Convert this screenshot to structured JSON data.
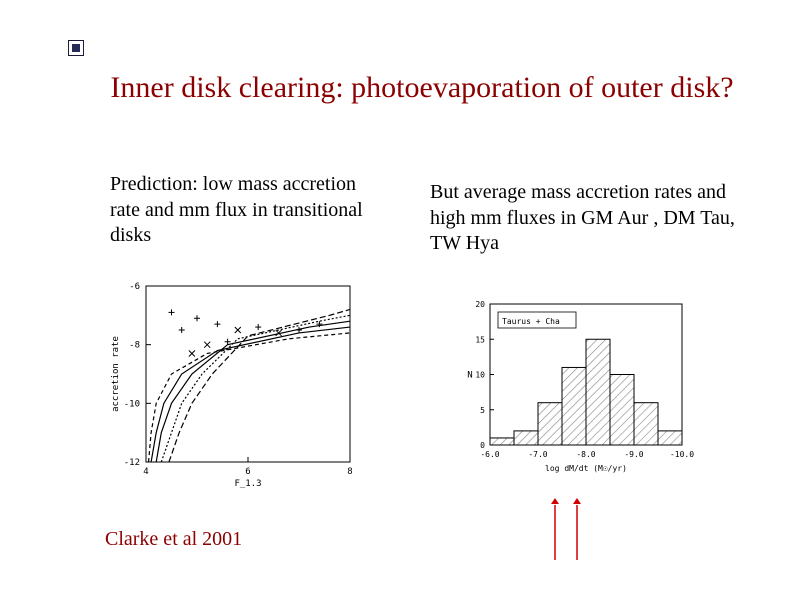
{
  "accent_colors": {
    "title": "#8b0000",
    "citation": "#8b0000",
    "arrows": "#d00000",
    "bullet_border": "#1a1a3a",
    "bullet_fill": "#2a2a5a"
  },
  "typography": {
    "title_fontsize": 30,
    "body_fontsize": 20,
    "family": "Times New Roman"
  },
  "title": "Inner disk clearing: photoevaporation of outer disk?",
  "left_text": "Prediction: low mass accretion rate and mm flux in transitional disks",
  "right_text": "But average mass accretion rates and high mm fluxes in GM Aur ,  DM Tau, TW Hya",
  "citation": "Clarke et al 2001",
  "left_plot": {
    "type": "line",
    "xlabel": "F_1.3",
    "ylabel": "accretion rate",
    "xlim": [
      4,
      8
    ],
    "ylim": [
      -12,
      -6
    ],
    "xtick_step": 2,
    "ytick_step": 2,
    "axes_color": "#000000",
    "line_width": 1.2,
    "background_color": "#ffffff",
    "curves": [
      {
        "pts": [
          [
            4.05,
            -12
          ],
          [
            4.1,
            -11
          ],
          [
            4.2,
            -10
          ],
          [
            4.5,
            -9
          ],
          [
            5.2,
            -8.3
          ],
          [
            6.8,
            -7.8
          ],
          [
            8,
            -7.6
          ]
        ],
        "dash": "4,3"
      },
      {
        "pts": [
          [
            4.1,
            -12
          ],
          [
            4.2,
            -11
          ],
          [
            4.35,
            -10
          ],
          [
            4.7,
            -9
          ],
          [
            5.4,
            -8.2
          ],
          [
            7.0,
            -7.6
          ],
          [
            8,
            -7.4
          ]
        ],
        "dash": ""
      },
      {
        "pts": [
          [
            4.2,
            -12
          ],
          [
            4.3,
            -11
          ],
          [
            4.5,
            -10
          ],
          [
            4.9,
            -9
          ],
          [
            5.6,
            -8.0
          ],
          [
            7.2,
            -7.4
          ],
          [
            8,
            -7.2
          ]
        ],
        "dash": ""
      },
      {
        "pts": [
          [
            4.3,
            -12
          ],
          [
            4.5,
            -11
          ],
          [
            4.7,
            -10
          ],
          [
            5.1,
            -9
          ],
          [
            5.8,
            -7.8
          ],
          [
            7.4,
            -7.2
          ],
          [
            8,
            -7.0
          ]
        ],
        "dash": "2,2"
      },
      {
        "pts": [
          [
            4.45,
            -12
          ],
          [
            4.65,
            -11
          ],
          [
            4.9,
            -10
          ],
          [
            5.3,
            -9
          ],
          [
            6.0,
            -7.7
          ],
          [
            7.6,
            -7.0
          ],
          [
            8,
            -6.8
          ]
        ],
        "dash": "6,3"
      }
    ],
    "markers": [
      {
        "x": 4.5,
        "y": -6.9,
        "t": "+"
      },
      {
        "x": 5.0,
        "y": -7.1,
        "t": "+"
      },
      {
        "x": 5.4,
        "y": -7.3,
        "t": "+"
      },
      {
        "x": 5.8,
        "y": -7.5,
        "t": "x"
      },
      {
        "x": 6.2,
        "y": -7.4,
        "t": "+"
      },
      {
        "x": 6.6,
        "y": -7.6,
        "t": "x"
      },
      {
        "x": 7.0,
        "y": -7.5,
        "t": "+"
      },
      {
        "x": 7.4,
        "y": -7.3,
        "t": "+"
      },
      {
        "x": 5.2,
        "y": -8.0,
        "t": "x"
      },
      {
        "x": 4.9,
        "y": -8.3,
        "t": "x"
      },
      {
        "x": 5.6,
        "y": -7.9,
        "t": "+"
      },
      {
        "x": 4.7,
        "y": -7.5,
        "t": "+"
      }
    ]
  },
  "right_plot": {
    "type": "histogram",
    "legend": "Taurus + Cha",
    "xlabel": "log dM/dt (M☉/yr)",
    "ylabel": "N",
    "xlim": [
      -6.0,
      -10.0
    ],
    "ylim": [
      0,
      20
    ],
    "ytick_step": 5,
    "xtick_labels": [
      "-6.0",
      "-7.0",
      "-8.0",
      "-9.0",
      "-10.0"
    ],
    "bin_width": 0.5,
    "axes_color": "#000000",
    "hatch_color": "#888888",
    "background_color": "#ffffff",
    "bars": [
      {
        "x": -6.25,
        "n": 1
      },
      {
        "x": -6.75,
        "n": 2
      },
      {
        "x": -7.25,
        "n": 6
      },
      {
        "x": -7.75,
        "n": 11
      },
      {
        "x": -8.25,
        "n": 15
      },
      {
        "x": -8.75,
        "n": 10
      },
      {
        "x": -9.25,
        "n": 6
      },
      {
        "x": -9.75,
        "n": 2
      }
    ]
  },
  "arrows": {
    "count": 2,
    "color": "#d00000",
    "positions_x": [
      0,
      22
    ],
    "length": 55,
    "head_size": 6
  }
}
